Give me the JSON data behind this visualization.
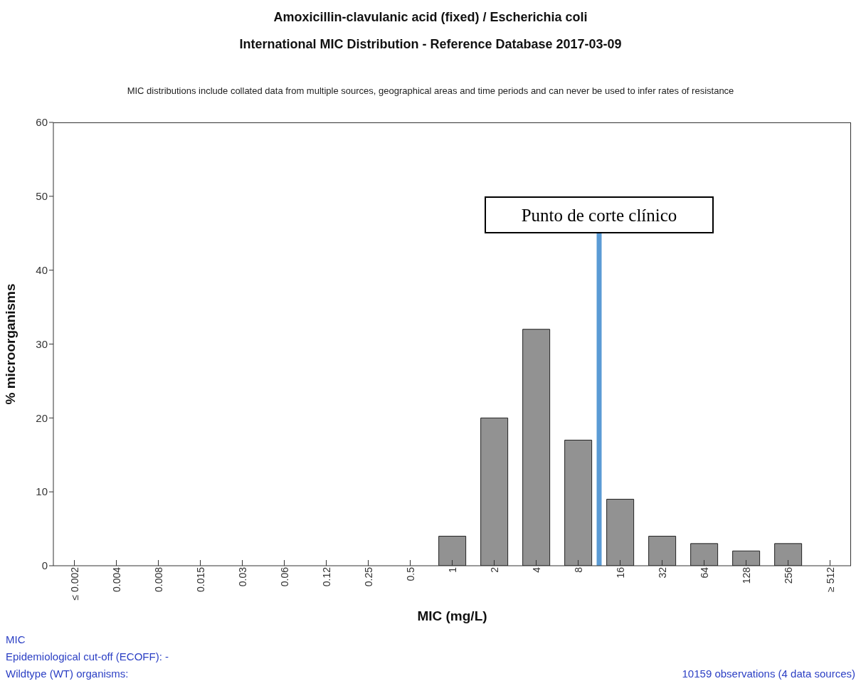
{
  "chart_data": {
    "type": "bar",
    "title": "Amoxicillin-clavulanic acid (fixed) / Escherichia coli",
    "subtitle": "International MIC Distribution - Reference Database 2017-03-09",
    "xlabel": "MIC (mg/L)",
    "ylabel": "% microorganisms",
    "categories": [
      "≤ 0.002",
      "0.004",
      "0.008",
      "0.015",
      "0.03",
      "0.06",
      "0.12",
      "0.25",
      "0.5",
      "1",
      "2",
      "4",
      "8",
      "16",
      "32",
      "64",
      "128",
      "256",
      "≥ 512"
    ],
    "values": [
      0,
      0,
      0,
      0,
      0,
      0,
      0,
      0,
      0,
      4,
      20,
      32,
      17,
      9,
      4,
      3,
      2,
      3,
      0
    ],
    "color": "#929292",
    "ylim": [
      0,
      60
    ],
    "yticks": [
      0,
      10,
      20,
      30,
      40,
      50,
      60
    ],
    "grid": false,
    "legend": false,
    "ref_lines": [
      {
        "axis": "x",
        "value": "8",
        "label": "Punto de corte clínico",
        "color": "#5b9bd5"
      }
    ],
    "annotations": [
      "MIC distributions include collated data from multiple sources, geographical areas and time periods and can never be used to infer rates of resistance",
      "MIC",
      "Epidemiological cut-off (ECOFF): -",
      "Wildtype (WT) organisms:",
      "10159 observations (4 data sources)"
    ]
  }
}
